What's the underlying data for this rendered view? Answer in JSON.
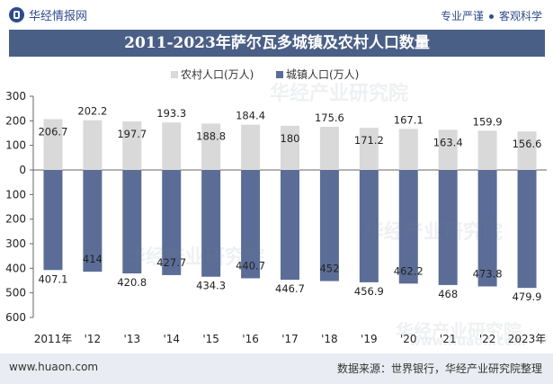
{
  "header": {
    "brand_name": "华经情报网",
    "tagline_left": "专业严谨",
    "tagline_right": "客观科学"
  },
  "title": "2011-2023年萨尔瓦多城镇及农村人口数量",
  "footer": {
    "site": "www.huaon.com",
    "source": "数据来源：世界银行，华经产业研究院整理"
  },
  "watermark": {
    "cn": "华经产业研究院",
    "en": "www.huaon.com"
  },
  "colors": {
    "rural": "#d9d9d9",
    "urban": "#5b6d97",
    "title_bg": "#4a5f86",
    "brand": "#2d4d8c"
  },
  "chart_data": {
    "type": "bar",
    "title": "2011-2023年萨尔瓦多城镇及农村人口数量",
    "categories": [
      "2011年",
      "'12",
      "'13",
      "'14",
      "'15",
      "'16",
      "'17",
      "'18",
      "'19",
      "'20",
      "'21",
      "'22",
      "2023年"
    ],
    "series": [
      {
        "name": "农村人口(万人)",
        "values": [
          206.7,
          202.2,
          197.7,
          193.3,
          188.8,
          184.4,
          180,
          175.6,
          171.2,
          167.1,
          163.4,
          159.9,
          156.6
        ]
      },
      {
        "name": "城镇人口(万人)",
        "values": [
          -407.1,
          -414,
          -420.8,
          -427.7,
          -434.3,
          -440.7,
          -446.7,
          -452,
          -456.9,
          -462.2,
          -468,
          -473.8,
          -479.9
        ]
      }
    ],
    "ylim": [
      -600,
      300
    ],
    "yticks": [
      300,
      200,
      100,
      0,
      -100,
      -200,
      -300,
      -400,
      -500,
      -600
    ],
    "ytick_labels": [
      "300",
      "200",
      "100",
      "0",
      "100",
      "200",
      "300",
      "400",
      "500",
      "600"
    ],
    "legend_position": "top-center",
    "grid": false
  }
}
